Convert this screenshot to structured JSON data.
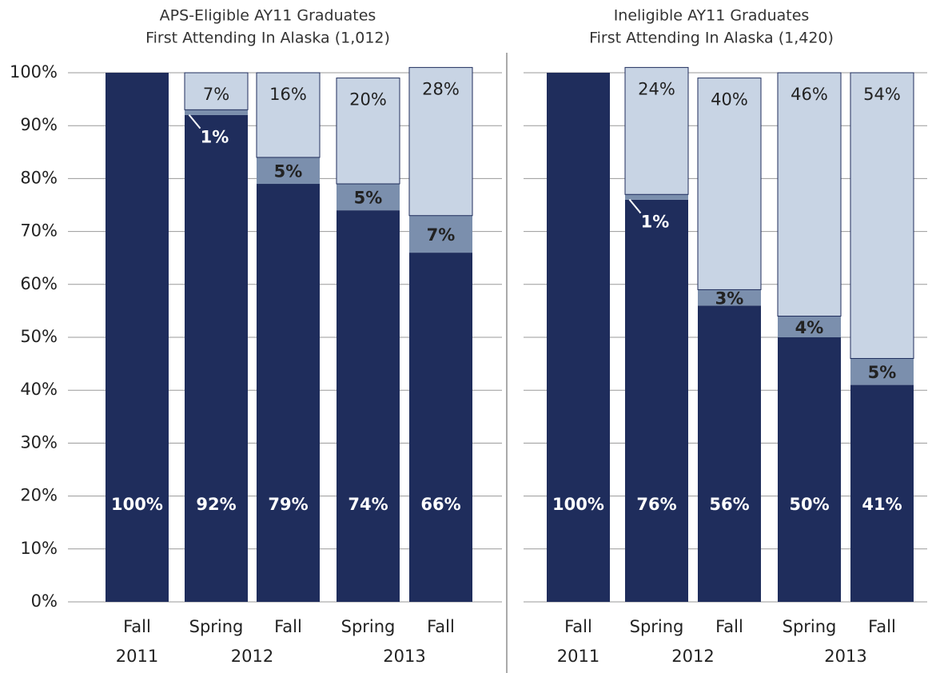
{
  "chart_data": [
    {
      "type": "stacked_bar",
      "title": [
        "APS-Eligible AY11 Graduates",
        "First Attending In Alaska (1,012)"
      ],
      "groups": [
        {
          "label": "2011",
          "categories": [
            "Fall"
          ]
        },
        {
          "label": "2012",
          "categories": [
            "Spring",
            "Fall"
          ]
        },
        {
          "label": "2013",
          "categories": [
            "Spring",
            "Fall"
          ]
        }
      ],
      "ylim": [
        0,
        100
      ],
      "yticks": [
        {
          "value": 0,
          "label": "0%"
        },
        {
          "value": 10,
          "label": "10%"
        },
        {
          "value": 20,
          "label": "20%"
        },
        {
          "value": 30,
          "label": "30%"
        },
        {
          "value": 40,
          "label": "40%"
        },
        {
          "value": 50,
          "label": "50%"
        },
        {
          "value": 60,
          "label": "60%"
        },
        {
          "value": 70,
          "label": "70%"
        },
        {
          "value": 80,
          "label": "80%"
        },
        {
          "value": 90,
          "label": "90%"
        },
        {
          "value": 100,
          "label": "100%"
        }
      ],
      "grid": true,
      "series": [
        {
          "color": "#1f2d5c",
          "values": [
            100,
            92,
            79,
            74,
            66
          ],
          "value_labels": [
            "100%",
            "92%",
            "79%",
            "74%",
            "66%"
          ]
        },
        {
          "color": "#7b8fad",
          "values": [
            null,
            1,
            5,
            5,
            7
          ],
          "value_labels": [
            null,
            "1%",
            "5%",
            "5%",
            "7%"
          ]
        },
        {
          "color": "#c8d4e4",
          "values": [
            null,
            7,
            16,
            20,
            28
          ],
          "value_labels": [
            null,
            "7%",
            "16%",
            "20%",
            "28%"
          ]
        }
      ]
    },
    {
      "type": "stacked_bar",
      "title": [
        "Ineligible AY11 Graduates",
        "First Attending In Alaska (1,420)"
      ],
      "groups": [
        {
          "label": "2011",
          "categories": [
            "Fall"
          ]
        },
        {
          "label": "2012",
          "categories": [
            "Spring",
            "Fall"
          ]
        },
        {
          "label": "2013",
          "categories": [
            "Spring",
            "Fall"
          ]
        }
      ],
      "ylim": [
        0,
        100
      ],
      "grid": true,
      "series": [
        {
          "color": "#1f2d5c",
          "values": [
            100,
            76,
            56,
            50,
            41
          ],
          "value_labels": [
            "100%",
            "76%",
            "56%",
            "50%",
            "41%"
          ]
        },
        {
          "color": "#7b8fad",
          "values": [
            null,
            1,
            3,
            4,
            5
          ],
          "value_labels": [
            null,
            "1%",
            "3%",
            "4%",
            "5%"
          ]
        },
        {
          "color": "#c8d4e4",
          "values": [
            null,
            24,
            40,
            46,
            54
          ],
          "value_labels": [
            null,
            "24%",
            "40%",
            "46%",
            "54%"
          ]
        }
      ]
    }
  ]
}
